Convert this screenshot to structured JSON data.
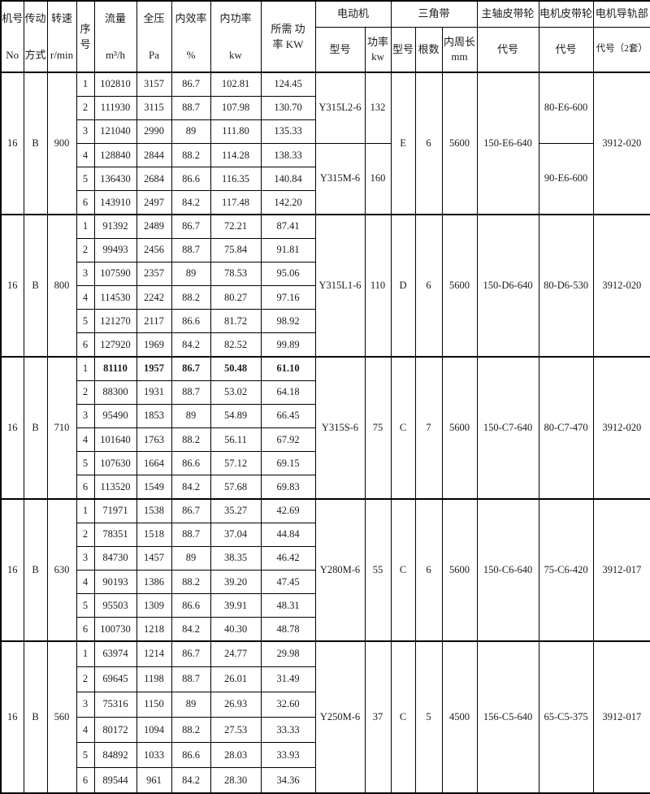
{
  "table": {
    "header": {
      "machine_no": {
        "line1": "机号",
        "line2": "No"
      },
      "drive": {
        "line1": "传动",
        "line2": "方式"
      },
      "speed": {
        "line1": "转速",
        "line2": "r/min"
      },
      "seq": {
        "line1": "序",
        "line2": "号"
      },
      "flow": {
        "line1": "流量",
        "line2": "m³/h"
      },
      "pressure": {
        "line1": "全压",
        "line2": "Pa"
      },
      "efficiency": {
        "line1": "内效率",
        "line2": "%"
      },
      "power": {
        "line1": "内功率",
        "line2": "kw"
      },
      "required": {
        "line1": "所需 功",
        "line2": "率 KW"
      },
      "motor_group": "电动机",
      "motor_model": "型号",
      "motor_kw": {
        "line1": "功率",
        "line2": "kw"
      },
      "belt_group": "三角带",
      "belt_type": "型号",
      "belt_count": "根数",
      "belt_length": {
        "line1": "内周长",
        "line2": "mm"
      },
      "main_pulley_group": "主轴皮带轮",
      "main_pulley_code": "代号",
      "motor_pulley_group": "电机皮带轮",
      "motor_pulley_code": "代号",
      "rail_group": "电机导轨部",
      "rail_code": "代号（2套）"
    },
    "blocks": [
      {
        "no": "16",
        "drive": "B",
        "speed": "900",
        "rows": [
          {
            "seq": "1",
            "flow": "102810",
            "pressure": "3157",
            "eff": "86.7",
            "power": "102.81",
            "required": "124.45",
            "bold": false
          },
          {
            "seq": "2",
            "flow": "111930",
            "pressure": "3115",
            "eff": "88.7",
            "power": "107.98",
            "required": "130.70",
            "bold": false
          },
          {
            "seq": "3",
            "flow": "121040",
            "pressure": "2990",
            "eff": "89",
            "power": "111.80",
            "required": "135.33",
            "bold": false
          },
          {
            "seq": "4",
            "flow": "128840",
            "pressure": "2844",
            "eff": "88.2",
            "power": "114.28",
            "required": "138.33",
            "bold": false
          },
          {
            "seq": "5",
            "flow": "136430",
            "pressure": "2684",
            "eff": "86.6",
            "power": "116.35",
            "required": "140.84",
            "bold": false
          },
          {
            "seq": "6",
            "flow": "143910",
            "pressure": "2497",
            "eff": "84.2",
            "power": "117.48",
            "required": "142.20",
            "bold": false
          }
        ],
        "motor_segments": [
          {
            "model": "Y315L2-6",
            "kw": "132",
            "span": 3
          },
          {
            "model": "Y315M-6",
            "kw": "160",
            "span": 3
          }
        ],
        "belt": {
          "type": "E",
          "count": "6",
          "length": "5600"
        },
        "main_pulley_code": "150-E6-640",
        "motor_pulley_segments": [
          {
            "code": "80-E6-600",
            "span": 3
          },
          {
            "code": "90-E6-600",
            "span": 3
          }
        ],
        "rail_code": "3912-020"
      },
      {
        "no": "16",
        "drive": "B",
        "speed": "800",
        "rows": [
          {
            "seq": "1",
            "flow": "91392",
            "pressure": "2489",
            "eff": "86.7",
            "power": "72.21",
            "required": "87.41",
            "bold": false
          },
          {
            "seq": "2",
            "flow": "99493",
            "pressure": "2456",
            "eff": "88.7",
            "power": "75.84",
            "required": "91.81",
            "bold": false
          },
          {
            "seq": "3",
            "flow": "107590",
            "pressure": "2357",
            "eff": "89",
            "power": "78.53",
            "required": "95.06",
            "bold": false
          },
          {
            "seq": "4",
            "flow": "114530",
            "pressure": "2242",
            "eff": "88.2",
            "power": "80.27",
            "required": "97.16",
            "bold": false
          },
          {
            "seq": "5",
            "flow": "121270",
            "pressure": "2117",
            "eff": "86.6",
            "power": "81.72",
            "required": "98.92",
            "bold": false
          },
          {
            "seq": "6",
            "flow": "127920",
            "pressure": "1969",
            "eff": "84.2",
            "power": "82.52",
            "required": "99.89",
            "bold": false
          }
        ],
        "motor_segments": [
          {
            "model": "Y315L1-6",
            "kw": "110",
            "span": 6
          }
        ],
        "belt": {
          "type": "D",
          "count": "6",
          "length": "5600"
        },
        "main_pulley_code": "150-D6-640",
        "motor_pulley_segments": [
          {
            "code": "80-D6-530",
            "span": 6
          }
        ],
        "rail_code": "3912-020"
      },
      {
        "no": "16",
        "drive": "B",
        "speed": "710",
        "rows": [
          {
            "seq": "1",
            "flow": "81110",
            "pressure": "1957",
            "eff": "86.7",
            "power": "50.48",
            "required": "61.10",
            "bold": true
          },
          {
            "seq": "2",
            "flow": "88300",
            "pressure": "1931",
            "eff": "88.7",
            "power": "53.02",
            "required": "64.18",
            "bold": false
          },
          {
            "seq": "3",
            "flow": "95490",
            "pressure": "1853",
            "eff": "89",
            "power": "54.89",
            "required": "66.45",
            "bold": false
          },
          {
            "seq": "4",
            "flow": "101640",
            "pressure": "1763",
            "eff": "88.2",
            "power": "56.11",
            "required": "67.92",
            "bold": false
          },
          {
            "seq": "5",
            "flow": "107630",
            "pressure": "1664",
            "eff": "86.6",
            "power": "57.12",
            "required": "69.15",
            "bold": false
          },
          {
            "seq": "6",
            "flow": "113520",
            "pressure": "1549",
            "eff": "84.2",
            "power": "57.68",
            "required": "69.83",
            "bold": false
          }
        ],
        "motor_segments": [
          {
            "model": "Y315S-6",
            "kw": "75",
            "span": 6
          }
        ],
        "belt": {
          "type": "C",
          "count": "7",
          "length": "5600"
        },
        "main_pulley_code": "150-C7-640",
        "motor_pulley_segments": [
          {
            "code": "80-C7-470",
            "span": 6
          }
        ],
        "rail_code": "3912-020"
      },
      {
        "no": "16",
        "drive": "B",
        "speed": "630",
        "rows": [
          {
            "seq": "1",
            "flow": "71971",
            "pressure": "1538",
            "eff": "86.7",
            "power": "35.27",
            "required": "42.69",
            "bold": false
          },
          {
            "seq": "2",
            "flow": "78351",
            "pressure": "1518",
            "eff": "88.7",
            "power": "37.04",
            "required": "44.84",
            "bold": false
          },
          {
            "seq": "3",
            "flow": "84730",
            "pressure": "1457",
            "eff": "89",
            "power": "38.35",
            "required": "46.42",
            "bold": false
          },
          {
            "seq": "4",
            "flow": "90193",
            "pressure": "1386",
            "eff": "88.2",
            "power": "39.20",
            "required": "47.45",
            "bold": false
          },
          {
            "seq": "5",
            "flow": "95503",
            "pressure": "1309",
            "eff": "86.6",
            "power": "39.91",
            "required": "48.31",
            "bold": false
          },
          {
            "seq": "6",
            "flow": "100730",
            "pressure": "1218",
            "eff": "84.2",
            "power": "40.30",
            "required": "48.78",
            "bold": false
          }
        ],
        "motor_segments": [
          {
            "model": "Y280M-6",
            "kw": "55",
            "span": 6
          }
        ],
        "belt": {
          "type": "C",
          "count": "6",
          "length": "5600"
        },
        "main_pulley_code": "150-C6-640",
        "motor_pulley_segments": [
          {
            "code": "75-C6-420",
            "span": 6
          }
        ],
        "rail_code": "3912-017"
      },
      {
        "no": "16",
        "drive": "B",
        "speed": "560",
        "rows": [
          {
            "seq": "1",
            "flow": "63974",
            "pressure": "1214",
            "eff": "86.7",
            "power": "24.77",
            "required": "29.98",
            "bold": false
          },
          {
            "seq": "2",
            "flow": "69645",
            "pressure": "1198",
            "eff": "88.7",
            "power": "26.01",
            "required": "31.49",
            "bold": false
          },
          {
            "seq": "3",
            "flow": "75316",
            "pressure": "1150",
            "eff": "89",
            "power": "26.93",
            "required": "32.60",
            "bold": false
          },
          {
            "seq": "4",
            "flow": "80172",
            "pressure": "1094",
            "eff": "88.2",
            "power": "27.53",
            "required": "33.33",
            "bold": false
          },
          {
            "seq": "5",
            "flow": "84892",
            "pressure": "1033",
            "eff": "86.6",
            "power": "28.03",
            "required": "33.93",
            "bold": false
          },
          {
            "seq": "6",
            "flow": "89544",
            "pressure": "961",
            "eff": "84.2",
            "power": "28.30",
            "required": "34.36",
            "bold": false
          }
        ],
        "motor_segments": [
          {
            "model": "Y250M-6",
            "kw": "37",
            "span": 6
          }
        ],
        "belt": {
          "type": "C",
          "count": "5",
          "length": "4500"
        },
        "main_pulley_code": "156-C5-640",
        "motor_pulley_segments": [
          {
            "code": "65-C5-375",
            "span": 6
          }
        ],
        "rail_code": "3912-017"
      }
    ]
  }
}
